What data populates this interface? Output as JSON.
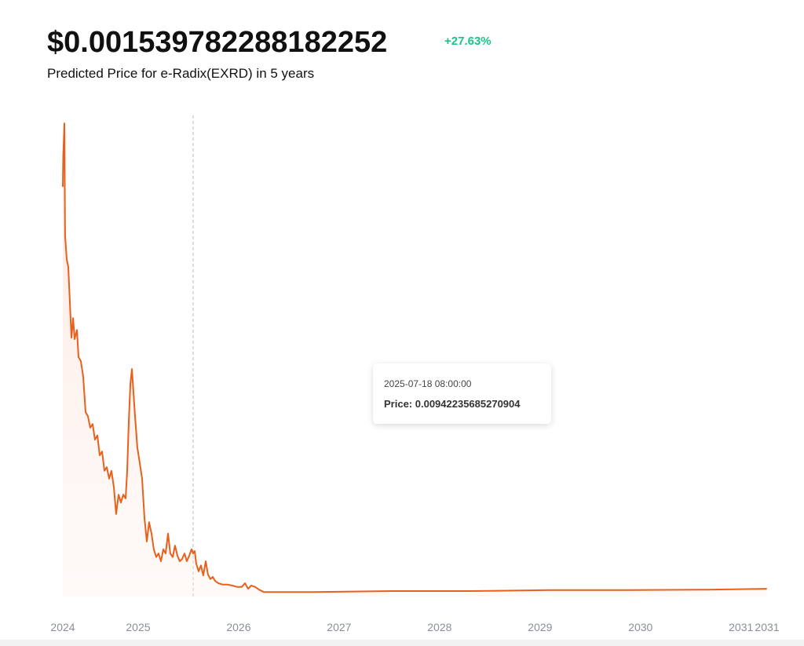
{
  "header": {
    "price": "$0.001539782288182252",
    "change": "+27.63%",
    "subtitle": "Predicted Price for e-Radix(EXRD) in 5 years"
  },
  "chart_data": {
    "type": "line",
    "color": "#e8601c",
    "area": true,
    "grid": false,
    "x": [
      2024.25,
      2024.254,
      2024.266,
      2024.273,
      2024.289,
      2024.305,
      2024.32,
      2024.336,
      2024.352,
      2024.367,
      2024.391,
      2024.406,
      2024.43,
      2024.453,
      2024.477,
      2024.5,
      2024.523,
      2024.547,
      2024.57,
      2024.594,
      2024.617,
      2024.641,
      2024.664,
      2024.688,
      2024.711,
      2024.734,
      2024.758,
      2024.781,
      2024.805,
      2024.828,
      2024.852,
      2024.875,
      2024.891,
      2024.906,
      2024.922,
      2024.938,
      2024.953,
      2024.969,
      2024.992,
      2025.016,
      2025.039,
      2025.063,
      2025.086,
      2025.109,
      2025.133,
      2025.156,
      2025.18,
      2025.203,
      2025.227,
      2025.25,
      2025.273,
      2025.297,
      2025.32,
      2025.344,
      2025.367,
      2025.391,
      2025.414,
      2025.438,
      2025.461,
      2025.484,
      2025.508,
      2025.531,
      2025.547,
      2025.563,
      2025.578,
      2025.602,
      2025.625,
      2025.648,
      2025.672,
      2025.695,
      2025.719,
      2025.742,
      2025.766,
      2025.797,
      2025.844,
      2025.891,
      2025.938,
      2025.984,
      2026.031,
      2026.063,
      2026.094,
      2026.125,
      2026.164,
      2026.203,
      2026.25,
      2026.75,
      2027.531,
      2028.313,
      2029.094,
      2029.875,
      2030.656,
      2031.258
    ],
    "values": [
      0.0893,
      0.0958,
      0.1031,
      0.0787,
      0.0735,
      0.0718,
      0.0641,
      0.0564,
      0.0607,
      0.0561,
      0.0581,
      0.0522,
      0.0513,
      0.0479,
      0.0402,
      0.0393,
      0.0368,
      0.0376,
      0.0342,
      0.0351,
      0.0308,
      0.0316,
      0.0274,
      0.0282,
      0.0257,
      0.0274,
      0.0239,
      0.018,
      0.0222,
      0.0205,
      0.0222,
      0.0214,
      0.0274,
      0.0376,
      0.0462,
      0.0496,
      0.0445,
      0.0393,
      0.0325,
      0.0291,
      0.0257,
      0.0171,
      0.012,
      0.0162,
      0.0137,
      0.0103,
      0.0086,
      0.0094,
      0.0077,
      0.0103,
      0.0094,
      0.0137,
      0.0094,
      0.0086,
      0.0111,
      0.0089,
      0.0077,
      0.0082,
      0.0094,
      0.0077,
      0.0089,
      0.0103,
      0.0094,
      0.0099,
      0.0072,
      0.0055,
      0.0068,
      0.0046,
      0.0077,
      0.0048,
      0.0038,
      0.0043,
      0.0034,
      0.0029,
      0.0026,
      0.0026,
      0.0024,
      0.0021,
      0.0021,
      0.0029,
      0.0017,
      0.0024,
      0.0021,
      0.0015,
      0.001,
      0.001,
      0.0012,
      0.0012,
      0.0014,
      0.0014,
      0.0015,
      0.0017
    ],
    "xlim": [
      2024.25,
      2031.26
    ],
    "xticks": [
      {
        "value": 2024.25,
        "label": "2024"
      },
      2025,
      2026,
      2027,
      2028,
      2029,
      2030,
      2031,
      {
        "value": 2031.26,
        "label": "2031"
      }
    ],
    "ylim": [
      0,
      0.11
    ],
    "tooltip": {
      "x": 2025.547,
      "label": "2025-07-18 08:00:00",
      "value": 0.00942235685270904,
      "value_label": "Price: 0.00942235685270904"
    }
  }
}
